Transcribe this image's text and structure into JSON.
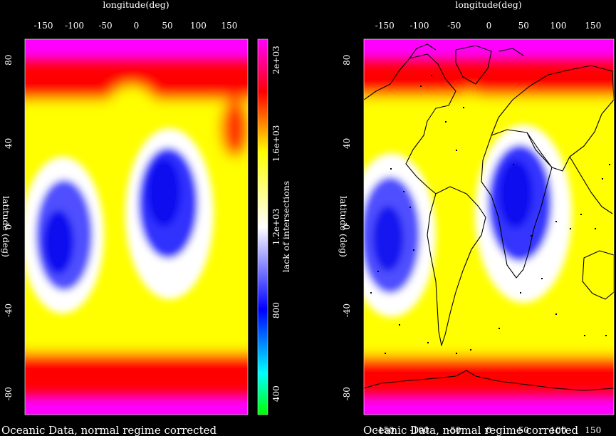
{
  "chart_data": [
    {
      "type": "heatmap",
      "panel": "left",
      "title": "Oceanic Data, normal regime corrected",
      "xlabel": "longitude(deg)",
      "ylabel": "latitude (deg)",
      "xlim": [
        -180,
        180
      ],
      "ylim": [
        -90,
        90
      ],
      "xticks": [
        "-150",
        "-100",
        "-50",
        "0",
        "50",
        "100",
        "150"
      ],
      "xtick_values": [
        -150,
        -100,
        -50,
        0,
        50,
        100,
        150
      ],
      "yticks": [
        "80",
        "40",
        "0",
        "-40",
        "-80"
      ],
      "ytick_values": [
        80,
        40,
        0,
        -40,
        -80
      ],
      "colorbar": {
        "label": "lack of intersections",
        "ticks": [
          "400",
          "800",
          "1.2e+03",
          "1.6e+03",
          "2e+03"
        ],
        "tick_values": [
          400,
          800,
          1200,
          1600,
          2000
        ],
        "range": [
          300,
          2100
        ]
      },
      "low_regions": [
        {
          "lon": -130,
          "lat": -5,
          "value": 850
        },
        {
          "lon": 50,
          "lat": 10,
          "value": 800
        }
      ],
      "coastlines": false
    },
    {
      "type": "heatmap",
      "panel": "right",
      "title": "Oceanic Data, normal regime corrected",
      "xlabel": "longitude(deg)",
      "ylabel": "latitude (deg)",
      "xlim": [
        -180,
        180
      ],
      "ylim": [
        -90,
        90
      ],
      "xticks": [
        "-150",
        "-100",
        "-50",
        "0",
        "50",
        "100",
        "150"
      ],
      "xtick_values": [
        -150,
        -100,
        -50,
        0,
        50,
        100,
        150
      ],
      "yticks": [
        "80",
        "40",
        "0",
        "-40",
        "-80"
      ],
      "ytick_values": [
        80,
        40,
        0,
        -40,
        -80
      ],
      "low_regions": [
        {
          "lon": -150,
          "lat": -10,
          "value": 850
        },
        {
          "lon": 45,
          "lat": 10,
          "value": 850
        }
      ],
      "coastlines": true
    }
  ],
  "colors": {
    "background": "#000000",
    "magenta": "#ff00ff",
    "red": "#ff0000",
    "yellow": "#ffff00",
    "white": "#ffffff",
    "blue": "#0000ff",
    "cyan": "#00ffff",
    "green": "#00ff00"
  }
}
